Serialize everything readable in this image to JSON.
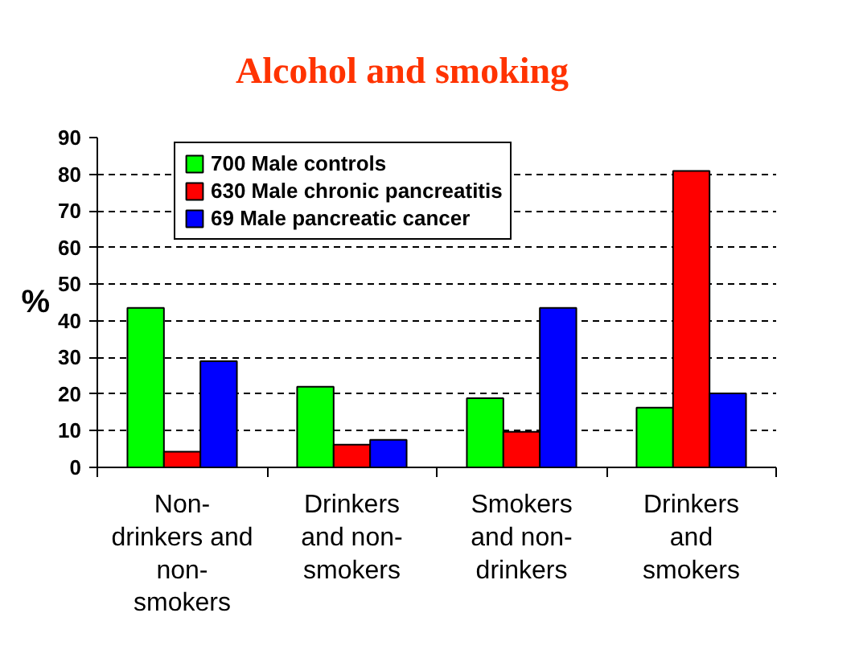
{
  "chart_data": {
    "type": "bar",
    "title": "Alcohol and smoking",
    "ylabel": "%",
    "categories": [
      "Non-\ndrinkers and\nnon-\nsmokers",
      "Drinkers\nand non-\nsmokers",
      "Smokers\nand non-\ndrinkers",
      "Drinkers\nand\nsmokers"
    ],
    "series": [
      {
        "name": "700 Male controls",
        "color": "#00ff00",
        "values": [
          43.5,
          22,
          18.9,
          16.3
        ]
      },
      {
        "name": "630 Male chronic pancreatitis",
        "color": "#ff0000",
        "values": [
          4.3,
          6.2,
          9.7,
          80.9
        ]
      },
      {
        "name": "69 Male pancreatic cancer",
        "color": "#0000ff",
        "values": [
          29,
          7.5,
          43.5,
          20.2
        ]
      }
    ],
    "ylim": [
      0,
      90
    ],
    "yticks": [
      0,
      10,
      20,
      30,
      40,
      50,
      60,
      70,
      80,
      90
    ],
    "grid": "y",
    "legend": "top left"
  }
}
